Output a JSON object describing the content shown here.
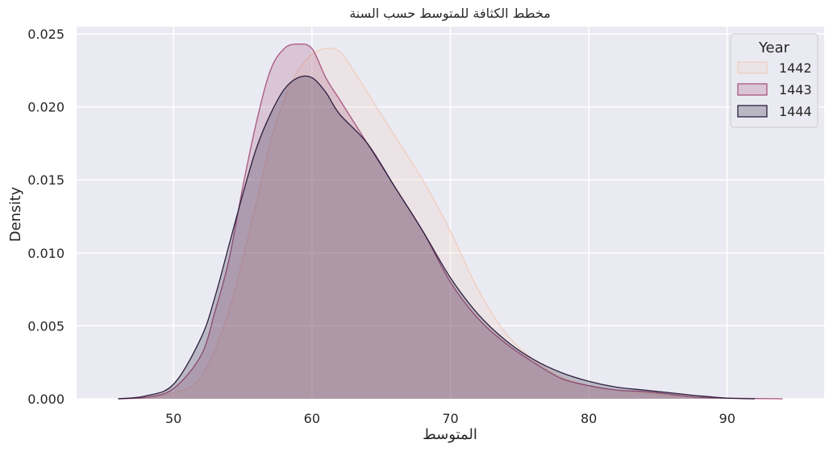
{
  "chart_data": {
    "type": "area",
    "title": "مخطط الكثافة للمتوسط حسب السنة",
    "xlabel": "المتوسط",
    "ylabel": "Density",
    "xlim": [
      43,
      97
    ],
    "ylim": [
      0,
      0.0255
    ],
    "xticks": [
      50,
      60,
      70,
      80,
      90
    ],
    "yticks": [
      0.0,
      0.005,
      0.01,
      0.015,
      0.02,
      0.025
    ],
    "xtick_labels": [
      "50",
      "60",
      "70",
      "80",
      "90"
    ],
    "ytick_labels": [
      "0.000",
      "0.005",
      "0.010",
      "0.015",
      "0.020",
      "0.025"
    ],
    "grid": true,
    "background": "#eaeaf2",
    "legend": {
      "title": "Year",
      "position": "top-right"
    },
    "series": [
      {
        "name": "1442",
        "color": "#f0cec0",
        "x": [
          46,
          48,
          50,
          52,
          54,
          56,
          57,
          58,
          59,
          60,
          61,
          62,
          63,
          64,
          66,
          68,
          70,
          72,
          74,
          76,
          78,
          80,
          82,
          84,
          86,
          88,
          90,
          92,
          94
        ],
        "y": [
          0.0,
          0.0001,
          0.0004,
          0.0015,
          0.006,
          0.0135,
          0.0175,
          0.0205,
          0.0225,
          0.0236,
          0.024,
          0.0238,
          0.0225,
          0.021,
          0.018,
          0.015,
          0.0115,
          0.0075,
          0.0045,
          0.0027,
          0.0015,
          0.0009,
          0.0006,
          0.0004,
          0.0002,
          0.0001,
          5e-05,
          2e-05,
          0.0
        ]
      },
      {
        "name": "1443",
        "color": "#a8577f",
        "x": [
          46,
          48,
          50,
          52,
          53,
          54,
          55,
          56,
          57,
          58,
          59,
          60,
          61,
          62,
          63,
          64,
          66,
          68,
          70,
          72,
          74,
          76,
          78,
          80,
          82,
          84,
          86,
          88,
          90,
          92,
          94
        ],
        "y": [
          0.0,
          0.0001,
          0.0007,
          0.003,
          0.006,
          0.0095,
          0.0145,
          0.019,
          0.0225,
          0.024,
          0.0243,
          0.024,
          0.022,
          0.0205,
          0.019,
          0.0175,
          0.0145,
          0.0115,
          0.008,
          0.0055,
          0.0038,
          0.0025,
          0.0014,
          0.0009,
          0.0006,
          0.0005,
          0.0003,
          0.0001,
          5e-05,
          2e-05,
          0.0
        ]
      },
      {
        "name": "1444",
        "color": "#2d1e3e",
        "x": [
          46,
          48,
          50,
          52,
          53,
          54,
          55,
          56,
          57,
          58,
          59,
          60,
          61,
          62,
          64,
          66,
          68,
          70,
          72,
          74,
          76,
          78,
          80,
          82,
          84,
          86,
          88,
          90,
          92
        ],
        "y": [
          0.0,
          0.0002,
          0.001,
          0.0042,
          0.007,
          0.0105,
          0.014,
          0.0172,
          0.0195,
          0.0212,
          0.022,
          0.022,
          0.021,
          0.0195,
          0.0175,
          0.0145,
          0.0115,
          0.0083,
          0.0058,
          0.004,
          0.0027,
          0.0018,
          0.0012,
          0.0008,
          0.0006,
          0.0004,
          0.0002,
          5e-05,
          0.0
        ]
      }
    ]
  }
}
